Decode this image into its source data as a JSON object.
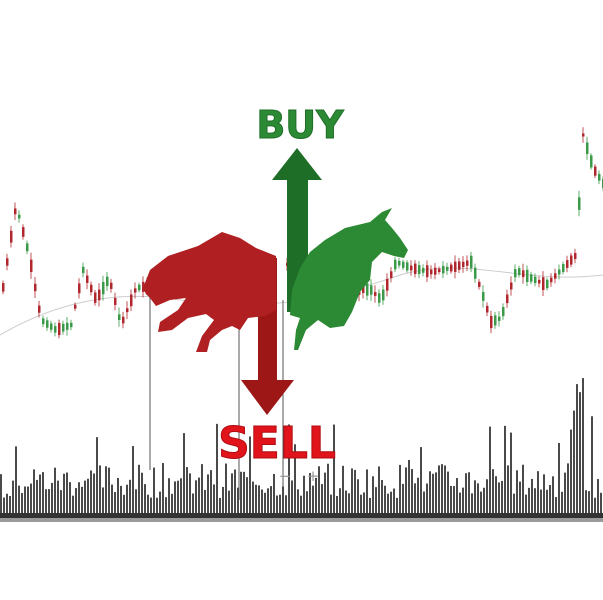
{
  "buy_label": "BUY",
  "sell_label": "SELL",
  "zoom_out_label": "−",
  "zoom_in_label": "+",
  "colors": {
    "buy": "#2c8a34",
    "buy_dark": "#1e6e27",
    "sell": "#e0141a",
    "sell_dark": "#9e1717",
    "candle_up": "#3a9a48",
    "candle_down": "#b0282e",
    "volume": "#4a4a4a",
    "moving_average": "#cccccc"
  },
  "icons": {
    "bull": "bull-icon",
    "bear": "bear-icon",
    "up_arrow": "up-arrow-icon",
    "down_arrow": "down-arrow-icon"
  }
}
